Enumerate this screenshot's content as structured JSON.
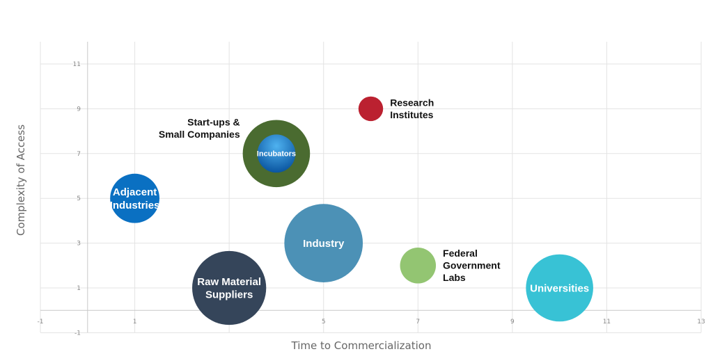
{
  "chart_data": {
    "type": "bubble",
    "xlabel": "Time to Commercialization",
    "ylabel": "Complexity of Access",
    "xlim": [
      -1,
      13
    ],
    "ylim": [
      -1,
      12
    ],
    "x_ticks": [
      -1,
      1,
      3,
      5,
      7,
      9,
      11,
      13
    ],
    "x_tick_labels": [
      "-1",
      "1",
      "",
      "5",
      "7",
      "9",
      "11",
      "13"
    ],
    "y_ticks": [
      -1,
      1,
      3,
      5,
      7,
      9,
      11
    ],
    "y_tick_labels": [
      "-1",
      "1",
      "3",
      "5",
      "7",
      "9",
      "11"
    ],
    "grid": true,
    "series": [
      {
        "label": "Adjacent\nIndustries",
        "x": 1,
        "y": 5,
        "size": 1.1,
        "color": "#0a70c2",
        "label_position": "inside"
      },
      {
        "label": "Raw Material\nSuppliers",
        "x": 3,
        "y": 1,
        "size": 1.65,
        "color": "#35455a",
        "label_position": "inside"
      },
      {
        "label": "Start-ups &\nSmall Companies",
        "x": 4,
        "y": 7,
        "size": 1.5,
        "color": "#4a6b30",
        "label_position": "left"
      },
      {
        "label": "Incubators",
        "x": 4,
        "y": 7,
        "size": 0.85,
        "color": "#1570c0",
        "label_position": "inside"
      },
      {
        "label": "Industry",
        "x": 5,
        "y": 3,
        "size": 1.75,
        "color": "#4c91b6",
        "label_position": "inside"
      },
      {
        "label": "Research\nInstitutes",
        "x": 6,
        "y": 9,
        "size": 0.55,
        "color": "#bb2130",
        "label_position": "right"
      },
      {
        "label": "Federal\nGovernment\nLabs",
        "x": 7,
        "y": 2,
        "size": 0.8,
        "color": "#93c572",
        "label_position": "right"
      },
      {
        "label": "Universities",
        "x": 10,
        "y": 1,
        "size": 1.5,
        "color": "#38c2d5",
        "label_position": "inside"
      }
    ]
  }
}
